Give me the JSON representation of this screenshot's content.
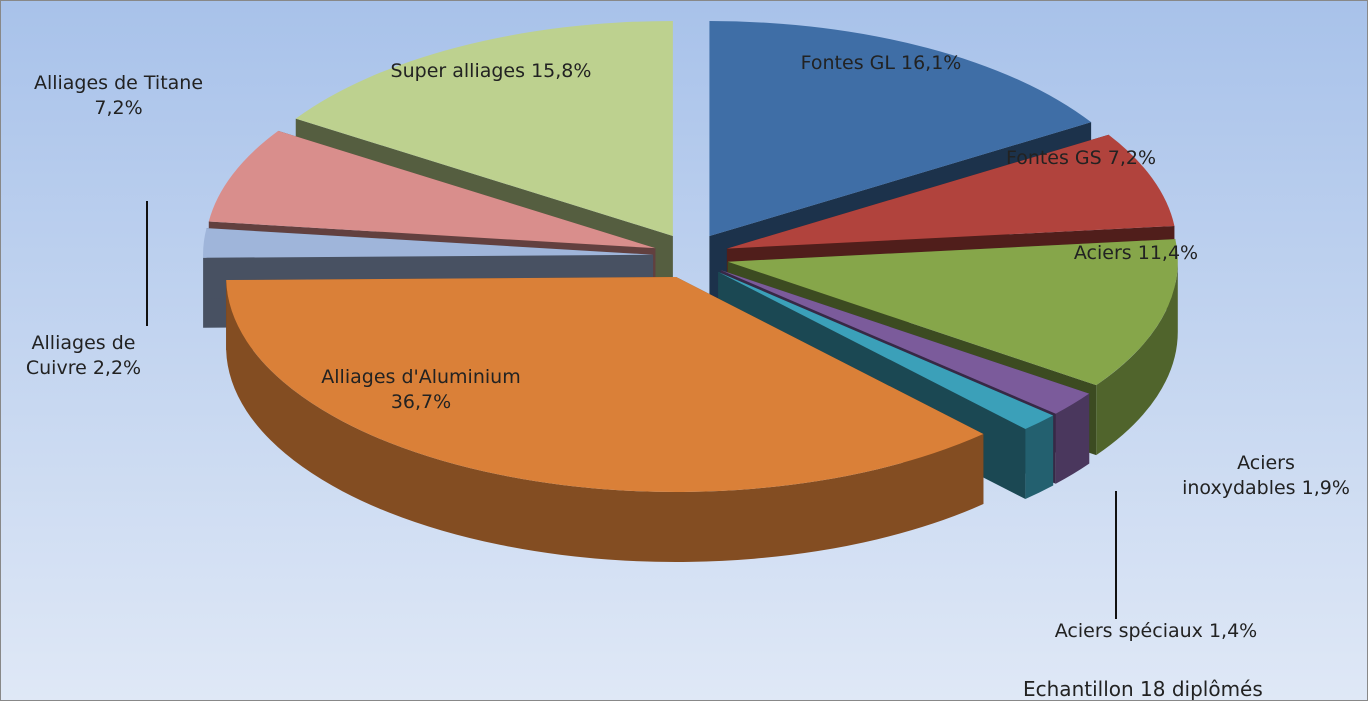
{
  "chart_data": {
    "type": "pie3d",
    "categories": [
      "Fontes GL",
      "Fontes GS",
      "Aciers",
      "Aciers inoxydables",
      "Aciers spéciaux",
      "Alliages d'Aluminium",
      "Alliages de Cuivre",
      "Alliages de Titane",
      "Super alliages"
    ],
    "values": [
      16.1,
      7.2,
      11.4,
      1.9,
      1.4,
      36.7,
      2.2,
      7.2,
      15.8
    ],
    "value_labels": [
      "16,1%",
      "7,2%",
      "11,4%",
      "1,9%",
      "1,4%",
      "36,7%",
      "2,2%",
      "7,2%",
      "15,8%"
    ],
    "colors": [
      "#3f6ea6",
      "#b1433d",
      "#86a64a",
      "#7b5b9b",
      "#3ba0b9",
      "#da8038",
      "#9fb5da",
      "#d98e8c",
      "#bdd18f"
    ],
    "note": "Echantillon 18 diplômés"
  }
}
